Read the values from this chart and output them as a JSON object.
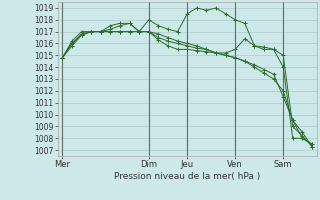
{
  "bg_color": "#cce8e8",
  "grid_color": "#aacccc",
  "line_color": "#2d6a2d",
  "xlabel": "Pression niveau de la mer( hPa )",
  "ylabel_ticks": [
    1007,
    1008,
    1009,
    1010,
    1011,
    1012,
    1013,
    1014,
    1015,
    1016,
    1017,
    1018,
    1019
  ],
  "ylim": [
    1006.5,
    1019.5
  ],
  "x_tick_labels": [
    "Mer",
    "Dim",
    "Jeu",
    "Ven",
    "Sam"
  ],
  "x_tick_positions": [
    0,
    9,
    13,
    18,
    23
  ],
  "vline_positions": [
    0,
    9,
    13,
    18,
    23
  ],
  "series": [
    [
      1014.8,
      1015.8,
      1016.7,
      1017.0,
      1017.0,
      1017.2,
      1017.5,
      1017.7,
      1017.0,
      1017.0,
      1016.8,
      1016.5,
      1016.2,
      1016.0,
      1015.8,
      1015.5,
      1015.2,
      1015.2,
      1015.5,
      1016.4,
      1015.8,
      1015.5,
      1015.5,
      1014.0,
      1008.0,
      1008.0,
      1007.5
    ],
    [
      1014.8,
      1016.0,
      1016.8,
      1017.0,
      1017.0,
      1017.5,
      1017.7,
      1017.7,
      1017.0,
      1018.0,
      1017.5,
      1017.2,
      1017.0,
      1018.5,
      1019.0,
      1018.8,
      1019.0,
      1018.5,
      1018.0,
      1017.7,
      1015.8,
      1015.7,
      1015.5,
      1015.0,
      1009.0,
      1008.2,
      1007.3
    ],
    [
      1014.8,
      1016.2,
      1017.0,
      1017.0,
      1017.0,
      1017.0,
      1017.0,
      1017.0,
      1017.0,
      1017.0,
      1016.5,
      1016.2,
      1016.0,
      1015.8,
      1015.6,
      1015.5,
      1015.2,
      1015.0,
      1014.8,
      1014.5,
      1014.0,
      1013.5,
      1013.0,
      1012.0,
      1009.5,
      1008.5,
      1007.3
    ],
    [
      1014.8,
      1016.0,
      1016.7,
      1017.0,
      1017.0,
      1017.0,
      1017.0,
      1017.0,
      1017.0,
      1017.0,
      1016.3,
      1015.8,
      1015.5,
      1015.5,
      1015.4,
      1015.3,
      1015.2,
      1015.0,
      1014.8,
      1014.5,
      1014.2,
      1013.8,
      1013.4,
      1011.5,
      1009.5,
      1008.0,
      1007.5
    ]
  ]
}
